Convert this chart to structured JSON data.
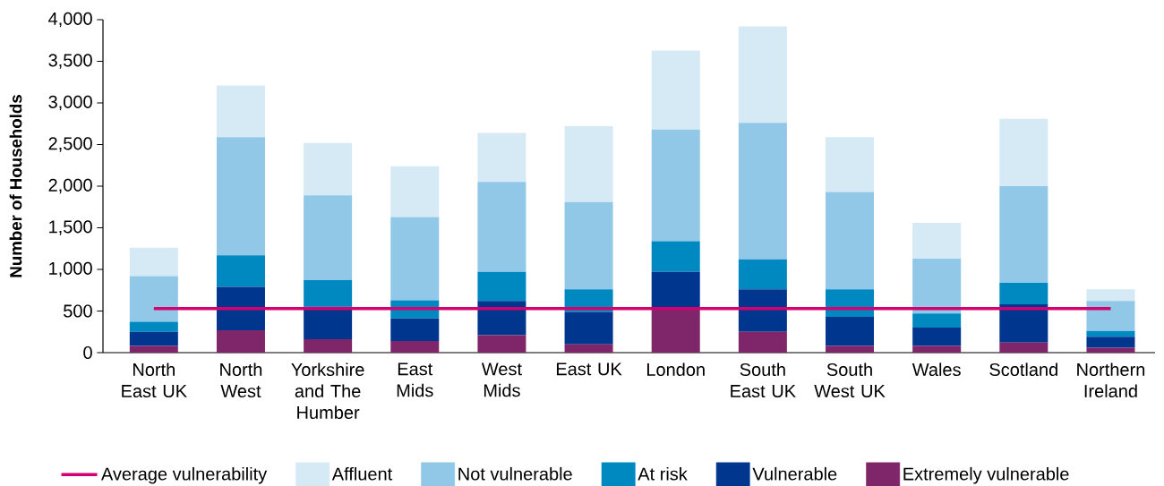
{
  "chart_data": {
    "type": "bar",
    "stacked": true,
    "ylabel": "Number of Households",
    "categories": [
      "North East UK",
      "North West",
      "Yorkshire and The Humber",
      "East Mids",
      "West Mids",
      "East UK",
      "London",
      "South East UK",
      "South West UK",
      "Wales",
      "Scotland",
      "Northern Ireland"
    ],
    "series": [
      {
        "name": "Extremely vulnerable",
        "color": "#7f266a",
        "values": [
          80,
          270,
          160,
          140,
          210,
          100,
          540,
          250,
          80,
          80,
          120,
          60
        ]
      },
      {
        "name": "Vulnerable",
        "color": "#00368e",
        "values": [
          170,
          520,
          390,
          270,
          410,
          390,
          430,
          510,
          350,
          220,
          460,
          130
        ]
      },
      {
        "name": "At risk",
        "color": "#0088c0",
        "values": [
          120,
          380,
          320,
          220,
          350,
          270,
          370,
          360,
          330,
          170,
          260,
          70
        ]
      },
      {
        "name": "Not vulnerable",
        "color": "#91c7e7",
        "values": [
          550,
          1420,
          1020,
          1000,
          1080,
          1050,
          1340,
          1640,
          1170,
          660,
          1160,
          360
        ]
      },
      {
        "name": "Affluent",
        "color": "#d5eaf5",
        "values": [
          340,
          620,
          630,
          610,
          590,
          910,
          950,
          1160,
          660,
          430,
          810,
          140
        ]
      },
      {
        "name": "Average vulnerability",
        "type": "line",
        "color": "#d5006f",
        "values": [
          530,
          530,
          530,
          530,
          530,
          530,
          530,
          530,
          530,
          530,
          530,
          530
        ]
      }
    ],
    "ylim": [
      0,
      4000
    ],
    "yticks": [
      0,
      500,
      {
        "value": 1000,
        "label": "1,000"
      },
      {
        "value": 1500,
        "label": "1,500"
      },
      {
        "value": 2000,
        "label": "2,000"
      },
      {
        "value": 2500,
        "label": "2,500"
      },
      {
        "value": 3000,
        "label": "3,000"
      },
      {
        "value": 3500,
        "label": "3,500"
      },
      {
        "value": 4000,
        "label": "4,000"
      }
    ],
    "legend": "bottom"
  }
}
